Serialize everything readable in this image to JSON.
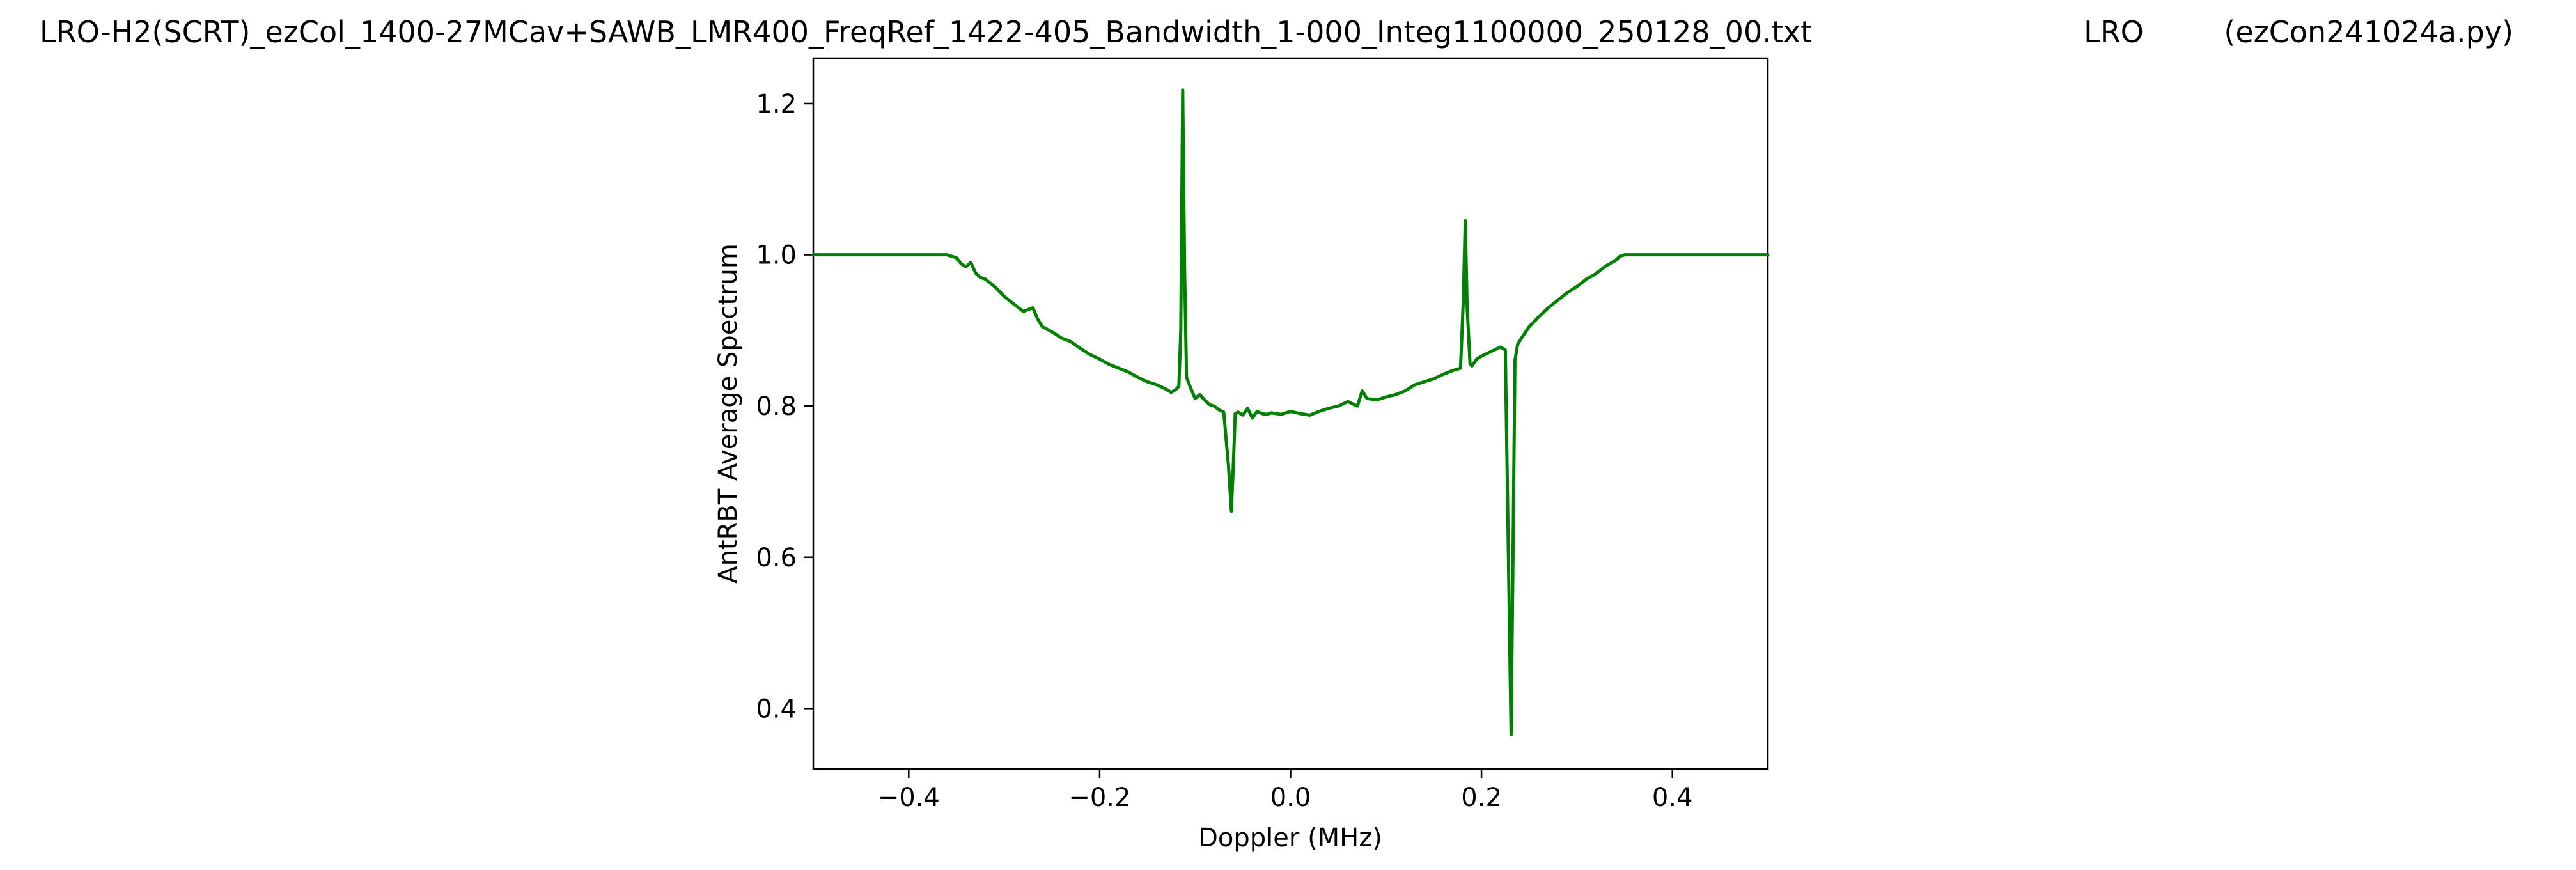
{
  "figure": {
    "title_parts": [
      "LRO-H2(SCRT)_ezCol_1400-27MCav+SAWB_LMR400_FreqRef_1422-405_Bandwidth_1-000_Integ1100000_250128_00.txt",
      "LRO",
      "(ezCon241024a.py)"
    ]
  },
  "chart_data": {
    "type": "line",
    "title": "LRO-H2(SCRT)_ezCol_1400-27MCav+SAWB_LMR400_FreqRef_1422-405_Bandwidth_1-000_Integ1100000_250128_00.txt          LRO          (ezCon241024a.py)",
    "xlabel": "Doppler (MHz)",
    "ylabel": "AntRBT Average Spectrum",
    "xlim": [
      -0.5,
      0.5
    ],
    "ylim": [
      0.32,
      1.26
    ],
    "xticks": [
      -0.4,
      -0.2,
      0.0,
      0.2,
      0.4
    ],
    "xtick_labels": [
      "−0.4",
      "−0.2",
      "0.0",
      "0.2",
      "0.4"
    ],
    "yticks": [
      0.4,
      0.6,
      0.8,
      1.0,
      1.2
    ],
    "ytick_labels": [
      "0.4",
      "0.6",
      "0.8",
      "1.0",
      "1.2"
    ],
    "grid": false,
    "legend": "none",
    "series": [
      {
        "color": "#008000",
        "x": [
          -0.5,
          -0.36,
          -0.35,
          -0.345,
          -0.34,
          -0.335,
          -0.33,
          -0.325,
          -0.32,
          -0.31,
          -0.3,
          -0.29,
          -0.28,
          -0.27,
          -0.265,
          -0.26,
          -0.25,
          -0.24,
          -0.23,
          -0.22,
          -0.21,
          -0.2,
          -0.19,
          -0.18,
          -0.17,
          -0.16,
          -0.15,
          -0.14,
          -0.13,
          -0.125,
          -0.12,
          -0.117,
          -0.115,
          -0.113,
          -0.111,
          -0.109,
          -0.105,
          -0.1,
          -0.095,
          -0.09,
          -0.085,
          -0.08,
          -0.075,
          -0.07,
          -0.065,
          -0.062,
          -0.06,
          -0.058,
          -0.055,
          -0.05,
          -0.045,
          -0.04,
          -0.035,
          -0.03,
          -0.025,
          -0.02,
          -0.01,
          0.0,
          0.01,
          0.02,
          0.03,
          0.04,
          0.05,
          0.06,
          0.07,
          0.075,
          0.08,
          0.09,
          0.1,
          0.11,
          0.12,
          0.13,
          0.14,
          0.15,
          0.16,
          0.17,
          0.178,
          0.181,
          0.183,
          0.185,
          0.188,
          0.19,
          0.195,
          0.2,
          0.21,
          0.215,
          0.22,
          0.225,
          0.228,
          0.231,
          0.233,
          0.235,
          0.238,
          0.242,
          0.25,
          0.26,
          0.27,
          0.28,
          0.29,
          0.3,
          0.31,
          0.32,
          0.33,
          0.34,
          0.345,
          0.35,
          0.5
        ],
        "y": [
          1.0,
          1.0,
          0.996,
          0.988,
          0.984,
          0.99,
          0.976,
          0.97,
          0.968,
          0.958,
          0.945,
          0.935,
          0.925,
          0.93,
          0.915,
          0.905,
          0.898,
          0.89,
          0.885,
          0.876,
          0.868,
          0.862,
          0.855,
          0.85,
          0.845,
          0.838,
          0.832,
          0.828,
          0.822,
          0.818,
          0.822,
          0.826,
          0.9,
          1.218,
          0.98,
          0.838,
          0.825,
          0.81,
          0.815,
          0.808,
          0.802,
          0.8,
          0.795,
          0.792,
          0.72,
          0.661,
          0.72,
          0.79,
          0.792,
          0.788,
          0.797,
          0.784,
          0.793,
          0.79,
          0.789,
          0.791,
          0.789,
          0.793,
          0.79,
          0.788,
          0.793,
          0.797,
          0.8,
          0.806,
          0.8,
          0.82,
          0.81,
          0.808,
          0.812,
          0.815,
          0.82,
          0.828,
          0.832,
          0.836,
          0.842,
          0.847,
          0.85,
          0.94,
          1.045,
          0.93,
          0.856,
          0.853,
          0.862,
          0.866,
          0.872,
          0.875,
          0.878,
          0.874,
          0.62,
          0.365,
          0.6,
          0.86,
          0.882,
          0.89,
          0.905,
          0.918,
          0.93,
          0.94,
          0.95,
          0.958,
          0.968,
          0.975,
          0.985,
          0.992,
          0.998,
          1.0,
          1.0
        ]
      }
    ]
  }
}
